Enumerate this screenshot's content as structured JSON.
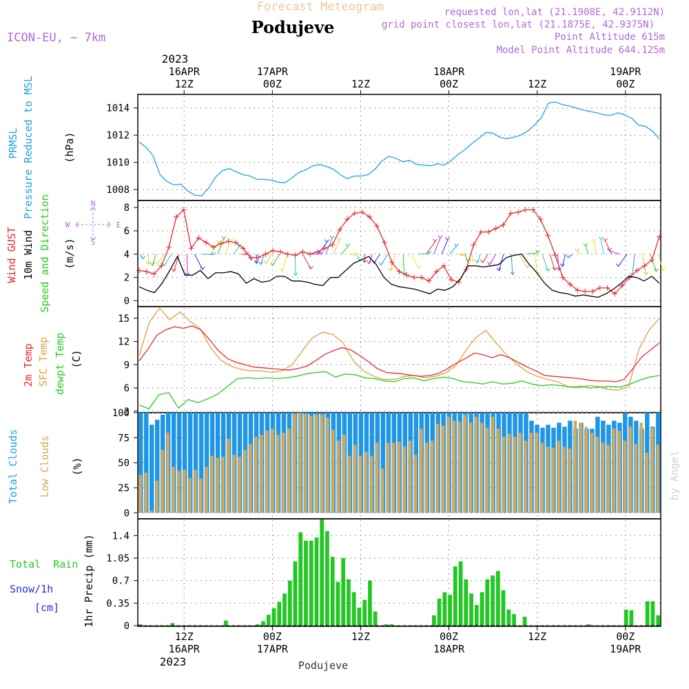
{
  "header": {
    "model": "ICON-EU, ~ 7km",
    "forecast_title": "Forecast Meteogram",
    "location": "Podujeve",
    "requested": "requested lon,lat (21.1908E, 42.9112N)",
    "grid_point": "grid point closest lon,lat (21.1875E, 42.9375N)",
    "point_altitude": "Point Altitude 615m",
    "model_altitude": "Model Point Altitude 644.125m",
    "footer_name": "Podujeve",
    "watermark": "by Angel"
  },
  "time_axis": {
    "start_year": "2023",
    "ticks_top": [
      {
        "h": 12,
        "day": "16APR",
        "hr": "12Z"
      },
      {
        "h": 24,
        "day": "17APR",
        "hr": "00Z"
      },
      {
        "h": 36,
        "day": "",
        "hr": "12Z"
      },
      {
        "h": 48,
        "day": "18APR",
        "hr": "00Z"
      },
      {
        "h": 60,
        "day": "",
        "hr": "12Z"
      },
      {
        "h": 72,
        "day": "19APR",
        "hr": "00Z"
      }
    ],
    "ticks_bottom": [
      {
        "h": 12,
        "hr": "12Z",
        "day": "16APR"
      },
      {
        "h": 24,
        "hr": "00Z",
        "day": "17APR"
      },
      {
        "h": 36,
        "hr": "12Z",
        "day": ""
      },
      {
        "h": 48,
        "hr": "00Z",
        "day": "18APR"
      },
      {
        "h": 60,
        "hr": "12Z",
        "day": ""
      },
      {
        "h": 72,
        "hr": "00Z",
        "day": "19APR"
      }
    ]
  },
  "panels": {
    "pressure": {
      "label1": "PRMSL",
      "label2": "Pressure Reduced to MSL",
      "unit": "(hPa)",
      "ticks": [
        "1008",
        "1010",
        "1012",
        "1014"
      ]
    },
    "wind": {
      "label1": "Wind GUST",
      "label2": "10m Wind",
      "label3": "Speed and Direction",
      "unit": "(m/s)",
      "ticks": [
        "0",
        "2",
        "4",
        "6",
        "8"
      ],
      "compass": [
        "N",
        "S",
        "W",
        "E"
      ]
    },
    "temp": {
      "label1": "2m Temp",
      "label2": "SFC Temp",
      "label3": "dewpt Temp",
      "unit": "(C)",
      "ticks": [
        "3",
        "6",
        "9",
        "12",
        "15"
      ]
    },
    "clouds": {
      "label1": "Total Clouds",
      "label2": "Low Clouds",
      "unit": "(%)",
      "ticks": [
        "0",
        "25",
        "50",
        "75",
        "100"
      ]
    },
    "precip": {
      "label1": "Total  Rain",
      "label2": "Snow/1h",
      "label3": "[cm]",
      "unit": "1hr Precip (mm)",
      "ticks": [
        "0",
        "0.35",
        "0.7",
        "1.05",
        "1.4"
      ]
    }
  },
  "colors": {
    "pressure": "#1ea0e6",
    "gust": "#e8282e",
    "wind": "#000000",
    "t2m": "#e8282e",
    "tsfc": "#e0a03c",
    "dewpt": "#22cc22",
    "total_clouds": "#1e96e6",
    "low_clouds": "#d2a85a",
    "rain": "#22c822",
    "snow": "#2828e6",
    "header_purple": "#b068d8",
    "header_tan": "#e8c89a",
    "label_blue": "#1ea0e6",
    "label_green": "#22cc22"
  },
  "chart_data": [
    {
      "type": "line",
      "title": "PRMSL Pressure Reduced to MSL",
      "ylabel": "(hPa)",
      "ylim": [
        1007.2,
        1015
      ],
      "hours_from": 0,
      "series": [
        {
          "name": "PRMSL",
          "values": [
            1011.5,
            1011.1,
            1010.5,
            1009.1,
            1008.6,
            1008.35,
            1008.4,
            1007.9,
            1007.6,
            1007.55,
            1008.1,
            1008.9,
            1009.4,
            1009.55,
            1009.3,
            1009.1,
            1009.0,
            1008.75,
            1008.75,
            1008.7,
            1008.55,
            1008.5,
            1008.85,
            1009.25,
            1009.45,
            1009.75,
            1009.85,
            1009.7,
            1009.5,
            1009.1,
            1008.8,
            1009.0,
            1009.0,
            1009.1,
            1009.5,
            1010.1,
            1010.45,
            1010.3,
            1010.05,
            1010.15,
            1009.85,
            1009.8,
            1009.75,
            1009.9,
            1009.8,
            1010.15,
            1010.6,
            1010.95,
            1011.4,
            1011.8,
            1012.2,
            1012.15,
            1011.85,
            1011.75,
            1011.85,
            1012.0,
            1012.3,
            1012.75,
            1013.3,
            1014.35,
            1014.45,
            1014.25,
            1014.15,
            1014.0,
            1013.85,
            1013.75,
            1013.65,
            1013.5,
            1013.45,
            1013.65,
            1013.5,
            1013.25,
            1012.75,
            1012.65,
            1012.3,
            1011.75
          ]
        }
      ]
    },
    {
      "type": "line",
      "title": "Wind GUST / 10m Wind Speed and Direction",
      "ylabel": "(m/s)",
      "ylim": [
        -0.5,
        8.6
      ],
      "hours_from": 0,
      "series": [
        {
          "name": "Wind GUST",
          "values": [
            2.6,
            2.5,
            2.3,
            3.0,
            4.6,
            7.2,
            7.8,
            4.5,
            5.4,
            5.0,
            4.6,
            4.9,
            5.1,
            5.0,
            4.5,
            3.7,
            3.7,
            4.0,
            4.3,
            4.2,
            4.0,
            3.9,
            4.2,
            4.0,
            4.2,
            4.5,
            4.8,
            6.1,
            7.0,
            7.5,
            7.6,
            7.2,
            6.4,
            5.0,
            3.3,
            2.5,
            2.2,
            2.0,
            2.0,
            1.7,
            2.5,
            3.0,
            1.8,
            1.6,
            2.7,
            4.8,
            5.9,
            5.9,
            6.2,
            6.5,
            7.5,
            7.6,
            7.8,
            7.8,
            7.0,
            5.6,
            3.9,
            2.0,
            1.4,
            0.9,
            0.8,
            0.8,
            1.1,
            1.1,
            0.6,
            1.3,
            2.0,
            2.6,
            3.0,
            3.5,
            5.5
          ],
          "hours_from": 0
        },
        {
          "name": "10m Wind",
          "values": [
            1.2,
            0.9,
            0.7,
            1.5,
            2.6,
            3.8,
            2.2,
            2.2,
            2.6,
            1.9,
            2.4,
            2.4,
            2.5,
            2.3,
            1.5,
            1.9,
            1.6,
            1.7,
            2.1,
            2.1,
            1.7,
            1.7,
            1.6,
            1.4,
            1.3,
            2.0,
            2.0,
            2.6,
            3.2,
            3.5,
            3.8,
            3.1,
            2.0,
            1.4,
            1.2,
            1.1,
            1.0,
            0.8,
            0.6,
            1.0,
            0.9,
            1.2,
            1.9,
            3.0,
            3.0,
            2.9,
            3.0,
            3.1,
            3.7,
            3.9,
            4.0,
            3.1,
            2.4,
            1.5,
            0.9,
            0.7,
            0.6,
            0.4,
            0.5,
            0.4,
            0.3,
            0.6,
            1.0,
            1.5,
            2.1,
            2.0,
            1.7,
            2.1,
            1.5
          ]
        }
      ]
    },
    {
      "type": "line",
      "title": "2m Temp / SFC Temp / dewpt Temp",
      "ylabel": "(C)",
      "ylim": [
        2.8,
        16.5
      ],
      "hours_from": 0,
      "series": [
        {
          "name": "2m Temp",
          "values": [
            9.5,
            11.0,
            12.8,
            13.5,
            13.9,
            13.7,
            14.0,
            13.5,
            12.2,
            10.8,
            9.8,
            9.3,
            9.0,
            8.7,
            8.6,
            8.5,
            8.4,
            8.3,
            8.5,
            8.8,
            9.5,
            10.3,
            10.8,
            11.2,
            10.9,
            10.2,
            9.4,
            8.5,
            8.0,
            7.9,
            7.8,
            7.6,
            7.5,
            7.6,
            7.9,
            8.5,
            9.2,
            9.8,
            10.5,
            10.3,
            9.9,
            10.3,
            9.9,
            9.3,
            8.7,
            8.2,
            7.6,
            7.5,
            7.4,
            7.3,
            7.2,
            7.0,
            6.9,
            6.9,
            6.8,
            7.1,
            8.5,
            10.0,
            10.9,
            11.8
          ]
        },
        {
          "name": "SFC Temp",
          "values": [
            10.2,
            14.5,
            16.3,
            14.8,
            15.8,
            14.6,
            13.6,
            11.2,
            9.6,
            8.8,
            8.4,
            8.2,
            8.2,
            8.0,
            8.2,
            9.0,
            10.8,
            12.5,
            13.2,
            12.9,
            11.8,
            9.5,
            8.2,
            7.5,
            7.1,
            7.1,
            7.5,
            7.6,
            7.3,
            7.5,
            7.9,
            8.8,
            10.8,
            12.5,
            13.4,
            11.8,
            10.3,
            9.1,
            8.1,
            7.5,
            7.1,
            6.8,
            6.2,
            6.0,
            6.3,
            6.2,
            5.8,
            5.7,
            6.2,
            11.0,
            13.5,
            15.0
          ]
        },
        {
          "name": "dewpt Temp",
          "values": [
            3.8,
            3.3,
            5.1,
            5.4,
            3.4,
            4.5,
            4.1,
            4.6,
            5.2,
            6.2,
            7.2,
            7.3,
            7.2,
            7.3,
            7.2,
            7.3,
            7.5,
            7.8,
            8.0,
            8.1,
            7.4,
            7.8,
            7.7,
            7.3,
            7.2,
            6.9,
            6.8,
            7.2,
            7.3,
            6.9,
            7.2,
            7.4,
            7.2,
            6.8,
            6.7,
            6.5,
            6.8,
            6.5,
            6.6,
            6.9,
            6.5,
            6.3,
            6.4,
            6.3,
            6.1,
            6.2,
            6.0,
            6.1,
            6.2,
            6.1,
            6.5,
            7.0,
            7.4,
            7.6
          ]
        }
      ]
    },
    {
      "type": "bar",
      "title": "Total Clouds / Low Clouds",
      "ylabel": "(%)",
      "ylim": [
        -6,
        100
      ],
      "hours_from": 0,
      "series": [
        {
          "name": "Total Clouds",
          "values": [
            100,
            100,
            88,
            93,
            98,
            100,
            100,
            100,
            100,
            100,
            100,
            100,
            100,
            100,
            100,
            100,
            100,
            100,
            100,
            100,
            100,
            100,
            100,
            100,
            100,
            100,
            100,
            100,
            100,
            100,
            100,
            100,
            100,
            100,
            100,
            100,
            100,
            100,
            100,
            100,
            100,
            100,
            100,
            100,
            100,
            100,
            100,
            100,
            100,
            100,
            100,
            100,
            100,
            100,
            100,
            100,
            100,
            100,
            100,
            100,
            100,
            100,
            100,
            100,
            100,
            100,
            100,
            100,
            100,
            100,
            100,
            92,
            88,
            85,
            88,
            85,
            90,
            86,
            92,
            84,
            90,
            84,
            84,
            96,
            92,
            88,
            92,
            90,
            100,
            96,
            92,
            84,
            100,
            86,
            100
          ]
        },
        {
          "name": "Low Clouds",
          "values": [
            38,
            40,
            2,
            32,
            63,
            80,
            46,
            42,
            43,
            35,
            43,
            34,
            46,
            57,
            55,
            56,
            74,
            58,
            56,
            63,
            69,
            76,
            78,
            82,
            84,
            78,
            80,
            84,
            99,
            100,
            99,
            97,
            98,
            98,
            95,
            83,
            72,
            78,
            57,
            68,
            57,
            61,
            57,
            70,
            44,
            70,
            70,
            71,
            66,
            72,
            58,
            84,
            70,
            72,
            89,
            87,
            96,
            92,
            91,
            98,
            90,
            96,
            90,
            85,
            96,
            84,
            76,
            79,
            76,
            80,
            72,
            80,
            80,
            70,
            66,
            65,
            72,
            66,
            64,
            92,
            90,
            86,
            80,
            76,
            70,
            68,
            84,
            82,
            72,
            86,
            69,
            90,
            60,
            85,
            68
          ]
        }
      ]
    },
    {
      "type": "bar",
      "title": "Total Rain / Snow/1h",
      "ylabel": "1hr Precip (mm)",
      "ylim": [
        -0.01,
        1.66
      ],
      "hours_from": 0,
      "series": [
        {
          "name": "Total Rain",
          "values": [
            0.02,
            0,
            0,
            0,
            0,
            0,
            0.04,
            0,
            0,
            0,
            0,
            0,
            0,
            0,
            0,
            0,
            0.08,
            0,
            0,
            0,
            0,
            0,
            0.02,
            0.07,
            0.17,
            0.27,
            0.37,
            0.5,
            0.7,
            1.0,
            1.45,
            1.32,
            1.32,
            1.37,
            1.65,
            1.47,
            1.07,
            0.68,
            1.05,
            0.72,
            0.52,
            0.28,
            0.4,
            0.7,
            0.22,
            0,
            0.02,
            0.02,
            0,
            0,
            0,
            0,
            0,
            0,
            0,
            0.16,
            0.42,
            0.52,
            0.48,
            0.92,
            1.0,
            0.72,
            0.5,
            0.32,
            0.52,
            0.72,
            0.78,
            0.85,
            0.55,
            0.25,
            0.18,
            0,
            0.14,
            0,
            0,
            0,
            0,
            0,
            0,
            0,
            0,
            0,
            0,
            0,
            0.02,
            0,
            0,
            0,
            0,
            0,
            0,
            0.25,
            0.24,
            0,
            0,
            0.38,
            0.38,
            0.16
          ]
        },
        {
          "name": "Snow/1h",
          "values": [
            0
          ]
        }
      ]
    }
  ],
  "wind_arrows": {
    "note": "direction glyphs at 4 m/s reference line",
    "colors": [
      "#1ea0e6",
      "#e6c828",
      "#22cc22",
      "#e6e628",
      "#28c8c8",
      "#e6282e",
      "#b028e6",
      "#2828e6"
    ]
  }
}
